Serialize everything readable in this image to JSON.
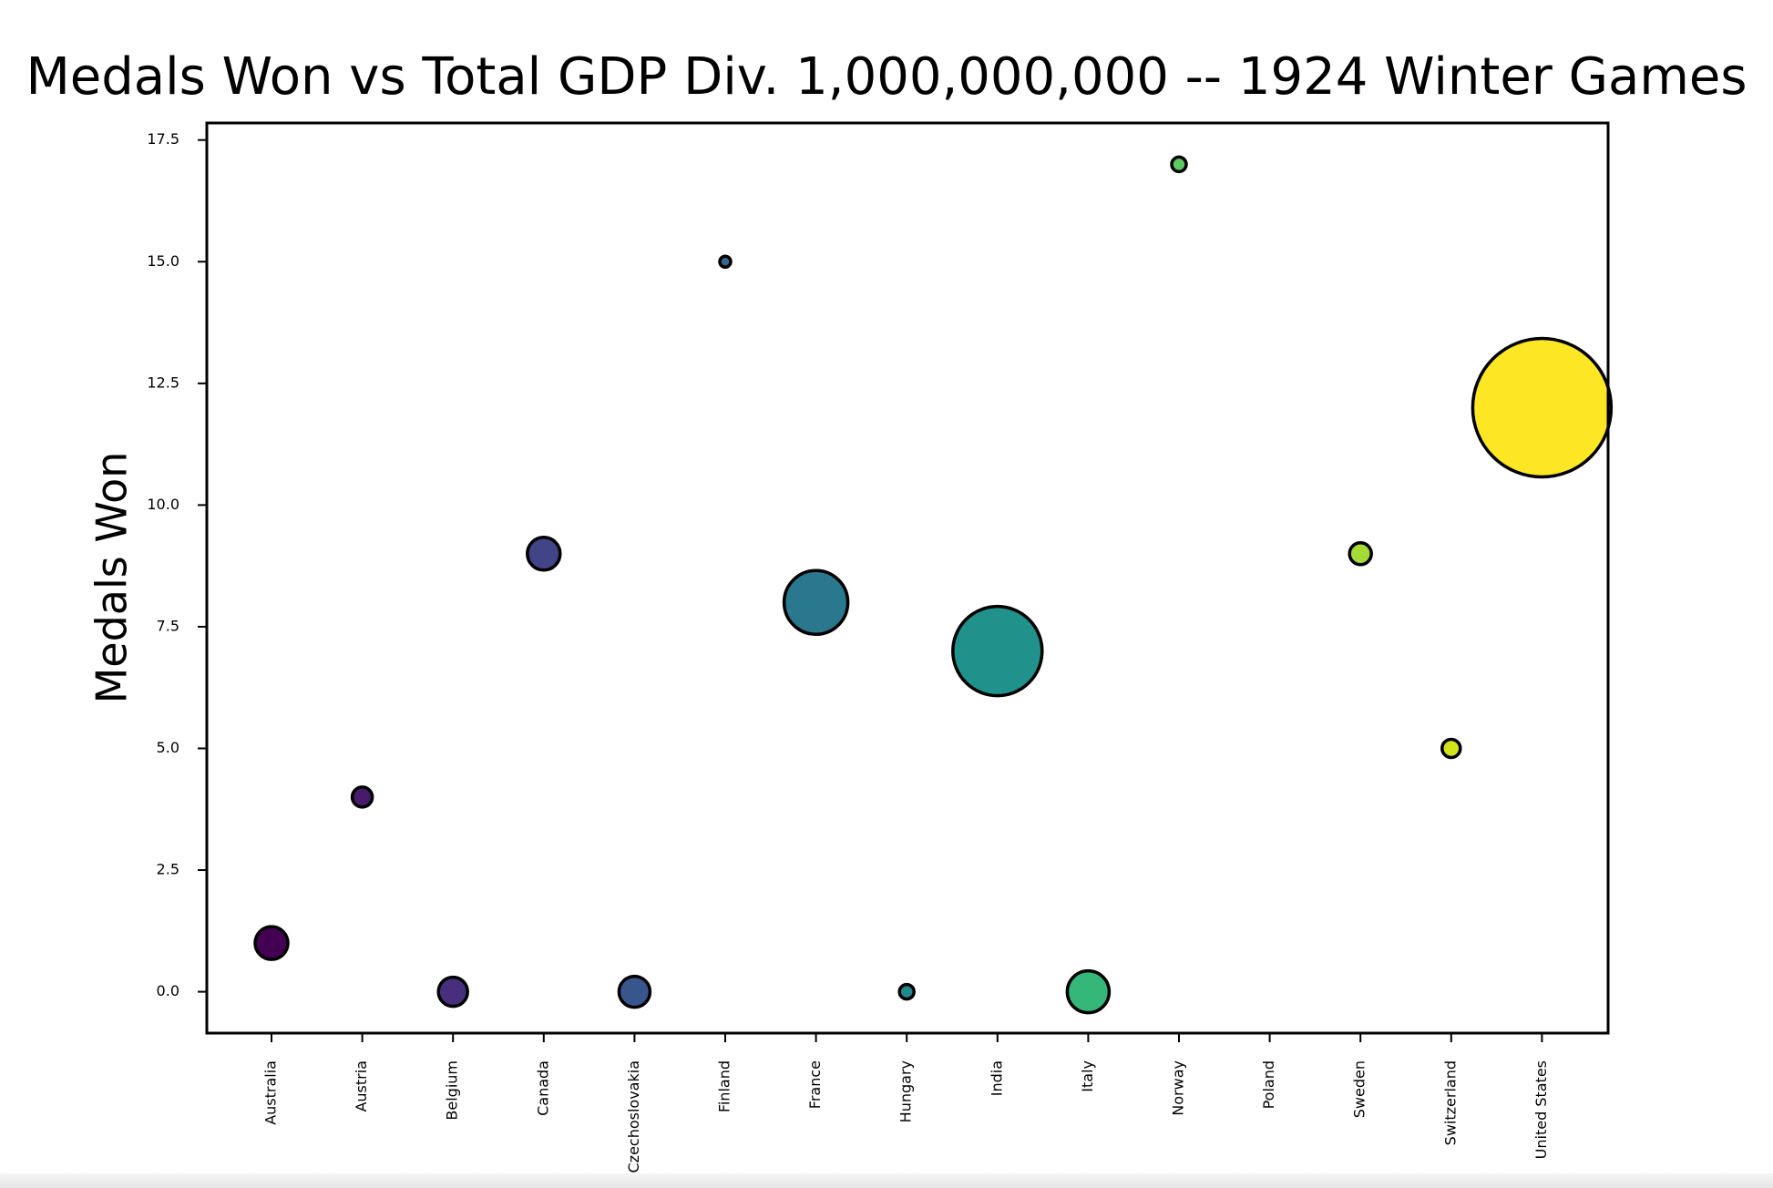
{
  "chart_data": {
    "type": "scatter",
    "title": "Medals Won vs Total GDP Div. 1,000,000,000 -- 1924 Winter Games",
    "xlabel": "",
    "ylabel": "Medals Won",
    "categories": [
      "Australia",
      "Austria",
      "Belgium",
      "Canada",
      "Czechoslovakia",
      "Finland",
      "France",
      "Hungary",
      "India",
      "Italy",
      "Norway",
      "Poland",
      "Sweden",
      "Switzerland",
      "United States"
    ],
    "y": [
      1,
      4,
      0,
      9,
      0,
      15,
      8,
      0,
      7,
      0,
      17,
      null,
      9,
      5,
      12
    ],
    "colors": [
      "#440154",
      "#481a6c",
      "#472f7d",
      "#414487",
      "#39568c",
      "#31688e",
      "#2a788e",
      "#23888e",
      "#21918c",
      "#35b779",
      "#5ec962",
      "#7ad151",
      "#a5db36",
      "#d2e21b",
      "#fde725"
    ],
    "ylim": [
      -0.85,
      17.85
    ],
    "yticks": [
      "0.0",
      "2.5",
      "5.0",
      "7.5",
      "10.0",
      "12.5",
      "15.0",
      "17.5"
    ],
    "ytick_values": [
      0,
      2.5,
      5,
      7.5,
      10,
      12.5,
      15,
      17.5
    ],
    "grid": false,
    "legend": "none"
  }
}
